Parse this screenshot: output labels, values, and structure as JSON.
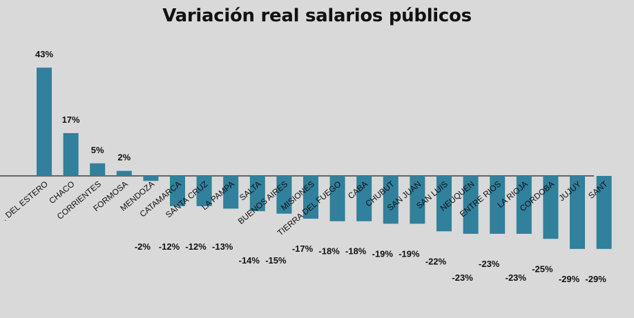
{
  "chart_data": {
    "type": "bar",
    "title": "Variación real salarios públicos",
    "xlabel": "",
    "ylabel": "",
    "ylim": [
      -30,
      45
    ],
    "grid": false,
    "legend": "none",
    "bar_color": "#31809c",
    "background_color": "#d9d9d9",
    "categories": [
      ". DEL ESTERO",
      "CHACO",
      "CORRIENTES",
      "FORMOSA",
      "MENDOZA",
      "CATAMARCA",
      "SANTA CRUZ",
      "LA PAMPA",
      "SALTA",
      "BUENOS AIRES",
      "MISIONES",
      "TIERRA DEL FUEGO",
      "CABA",
      "CHUBUT",
      "SAN JUAN",
      "SAN LUIS",
      "NEUQUEN",
      "ENTRE RIOS",
      "LA RIOJA",
      "CORDOBA",
      "JUJUY",
      "SANT"
    ],
    "values": [
      43,
      17,
      5,
      2,
      -2,
      -12,
      -12,
      -13,
      -14,
      -15,
      -17,
      -18,
      -18,
      -19,
      -19,
      -22,
      -23,
      -23,
      -23,
      -25,
      -29,
      -29
    ],
    "value_labels": [
      "43%",
      "17%",
      "5%",
      "2%",
      "-2%",
      "-12%",
      "-12%",
      "-13%",
      "-14%",
      "-15%",
      "-17%",
      "-18%",
      "-18%",
      "-19%",
      "-19%",
      "-22%",
      "-23%",
      "-23%",
      "-23%",
      "-25%",
      "-29%",
      "-29%"
    ]
  }
}
